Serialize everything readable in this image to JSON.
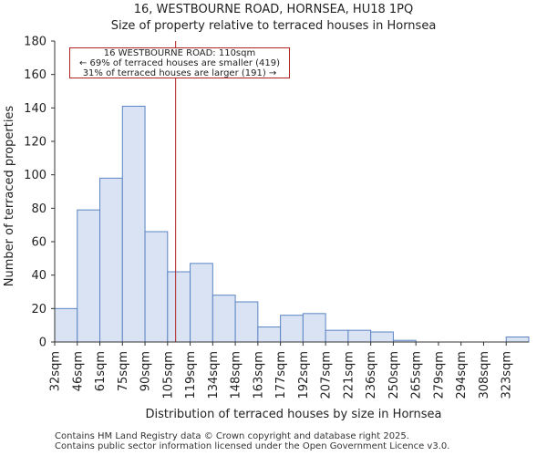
{
  "chart_data": {
    "type": "bar",
    "title": "16, WESTBOURNE ROAD, HORNSEA, HU18 1PQ",
    "subtitle": "Size of property relative to terraced houses in Hornsea",
    "xlabel": "Distribution of terraced houses by size in Hornsea",
    "ylabel": "Number of terraced properties",
    "categories": [
      "32sqm",
      "46sqm",
      "61sqm",
      "75sqm",
      "90sqm",
      "105sqm",
      "119sqm",
      "134sqm",
      "148sqm",
      "163sqm",
      "177sqm",
      "192sqm",
      "207sqm",
      "221sqm",
      "236sqm",
      "250sqm",
      "265sqm",
      "279sqm",
      "294sqm",
      "308sqm",
      "323sqm"
    ],
    "values": [
      20,
      79,
      98,
      141,
      66,
      42,
      47,
      28,
      24,
      9,
      16,
      17,
      7,
      7,
      6,
      1,
      0,
      0,
      0,
      0,
      3
    ],
    "ylim": [
      0,
      180
    ],
    "yticks": [
      0,
      20,
      40,
      60,
      80,
      100,
      120,
      140,
      160,
      180
    ],
    "bar_color": "#dae3f3",
    "bar_edge_color": "#5b85c4",
    "marker": {
      "value": 110,
      "unit": "sqm",
      "color": "#b22222"
    },
    "annotation": {
      "line1": "16 WESTBOURNE ROAD: 110sqm",
      "line2": "← 69% of terraced houses are smaller (419)",
      "line3": "31% of terraced houses are larger (191) →"
    }
  },
  "footer": {
    "line1": "Contains HM Land Registry data © Crown copyright and database right 2025.",
    "line2": "Contains public sector information licensed under the Open Government Licence v3.0."
  }
}
